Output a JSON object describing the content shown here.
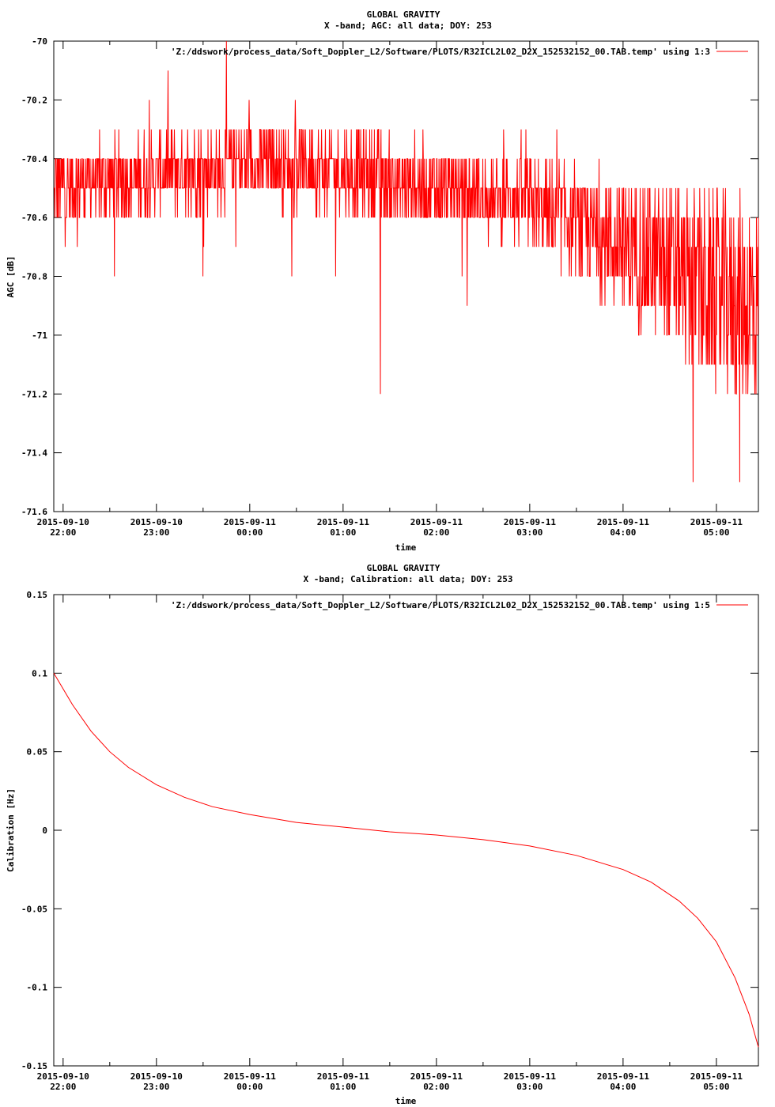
{
  "chart_data": [
    {
      "type": "line",
      "title": "GLOBAL GRAVITY",
      "subtitle": "X -band; AGC: all data; DOY: 253",
      "xlabel": "time",
      "ylabel": "AGC [dB]",
      "legend": "'Z:/ddswork/process_data/Soft_Doppler_L2/Software/PLOTS/R32ICL2L02_D2X_152532152_00.TAB.temp' using 1:3",
      "legend_position": "top-right",
      "color": "#ff0000",
      "xlim": [
        21.9,
        29.45
      ],
      "ylim": [
        -71.6,
        -70
      ],
      "yticks": [
        -70,
        -70.2,
        -70.4,
        -70.6,
        -70.8,
        -71,
        -71.2,
        -71.4,
        -71.6
      ],
      "ytick_labels": [
        "-70",
        "-70.2",
        "-70.4",
        "-70.6",
        "-70.8",
        "-71",
        "-71.2",
        "-71.4",
        "-71.6"
      ],
      "xticks": [
        22,
        23,
        24,
        25,
        26,
        27,
        28,
        29
      ],
      "xtick_labels": [
        [
          "2015-09-10",
          "22:00"
        ],
        [
          "2015-09-10",
          "23:00"
        ],
        [
          "2015-09-11",
          "00:00"
        ],
        [
          "2015-09-11",
          "01:00"
        ],
        [
          "2015-09-11",
          "02:00"
        ],
        [
          "2015-09-11",
          "03:00"
        ],
        [
          "2015-09-11",
          "04:00"
        ],
        [
          "2015-09-11",
          "05:00"
        ]
      ],
      "trend": {
        "x": [
          21.9,
          23.0,
          24.0,
          25.0,
          26.0,
          27.0,
          27.5,
          28.0,
          28.5,
          29.0,
          29.45
        ],
        "y": [
          -70.5,
          -70.45,
          -70.42,
          -70.44,
          -70.5,
          -70.55,
          -70.62,
          -70.7,
          -70.78,
          -70.86,
          -70.9
        ]
      },
      "extremes": [
        {
          "x": 23.75,
          "y": -70
        },
        {
          "x": 25.4,
          "y": -71.2
        },
        {
          "x": 28.75,
          "y": -71.5
        },
        {
          "x": 29.25,
          "y": -71.5
        }
      ]
    },
    {
      "type": "line",
      "title": "GLOBAL GRAVITY",
      "subtitle": "X -band; Calibration: all data; DOY: 253",
      "xlabel": "time",
      "ylabel": "Calibration [Hz]",
      "legend": "'Z:/ddswork/process_data/Soft_Doppler_L2/Software/PLOTS/R32ICL2L02_D2X_152532152_00.TAB.temp' using 1:5",
      "legend_position": "top-right",
      "color": "#ff0000",
      "xlim": [
        21.9,
        29.45
      ],
      "ylim": [
        -0.15,
        0.15
      ],
      "yticks": [
        0.15,
        0.1,
        0.05,
        0,
        -0.05,
        -0.1,
        -0.15
      ],
      "ytick_labels": [
        "0.15",
        "0.1",
        "0.05",
        "0",
        "-0.05",
        "-0.1",
        "-0.15"
      ],
      "xticks": [
        22,
        23,
        24,
        25,
        26,
        27,
        28,
        29
      ],
      "xtick_labels": [
        [
          "2015-09-10",
          "22:00"
        ],
        [
          "2015-09-10",
          "23:00"
        ],
        [
          "2015-09-11",
          "00:00"
        ],
        [
          "2015-09-11",
          "01:00"
        ],
        [
          "2015-09-11",
          "02:00"
        ],
        [
          "2015-09-11",
          "03:00"
        ],
        [
          "2015-09-11",
          "04:00"
        ],
        [
          "2015-09-11",
          "05:00"
        ]
      ],
      "x": [
        21.9,
        22.1,
        22.3,
        22.5,
        22.7,
        23.0,
        23.3,
        23.6,
        24.0,
        24.5,
        25.0,
        25.5,
        26.0,
        26.5,
        27.0,
        27.5,
        28.0,
        28.3,
        28.6,
        28.8,
        29.0,
        29.2,
        29.35,
        29.45
      ],
      "y": [
        0.1,
        0.08,
        0.063,
        0.05,
        0.04,
        0.029,
        0.021,
        0.015,
        0.01,
        0.005,
        0.002,
        -0.001,
        -0.003,
        -0.006,
        -0.01,
        -0.016,
        -0.025,
        -0.033,
        -0.045,
        -0.056,
        -0.071,
        -0.094,
        -0.117,
        -0.138
      ]
    }
  ]
}
